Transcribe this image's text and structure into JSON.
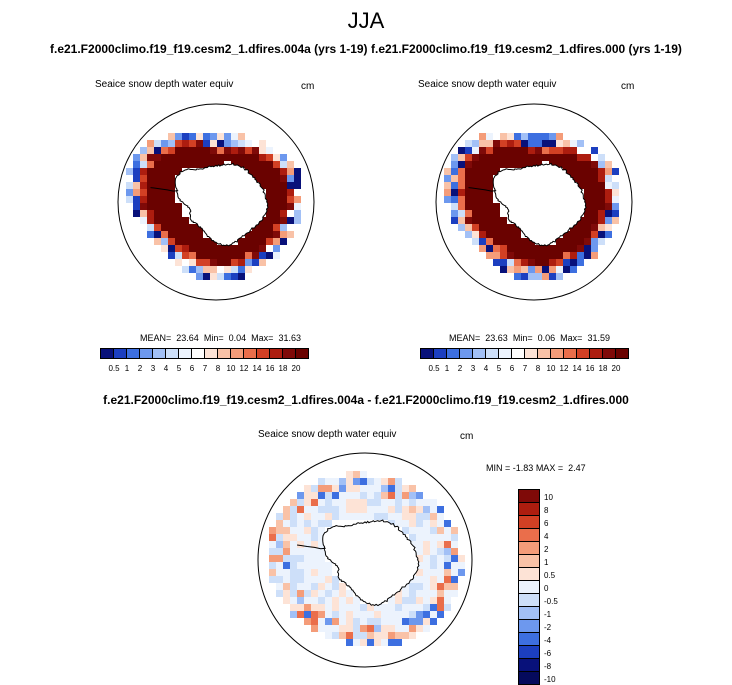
{
  "figure": {
    "title": "JJA",
    "variable_label": "Seaice snow depth water equiv",
    "units": "cm"
  },
  "chart_data": [
    {
      "type": "heatmap",
      "panel": "left",
      "title": "f.e21.F2000climo.f19_f19.cesm2_1.dfires.004a (yrs 1-19)",
      "subtitle": "Seaice snow depth water equiv",
      "units": "cm",
      "projection": "south polar stereographic",
      "stats": {
        "mean_label": "MEAN=",
        "mean": "23.64",
        "min_label": "Min=",
        "min": "0.04",
        "max_label": "Max=",
        "max": "31.63"
      },
      "colorbar_levels": [
        "0.5",
        "1",
        "2",
        "3",
        "4",
        "5",
        "6",
        "7",
        "8",
        "10",
        "12",
        "14",
        "16",
        "18",
        "20"
      ]
    },
    {
      "type": "heatmap",
      "panel": "right",
      "title": "f.e21.F2000climo.f19_f19.cesm2_1.dfires.000 (yrs 1-19)",
      "subtitle": "Seaice snow depth water equiv",
      "units": "cm",
      "projection": "south polar stereographic",
      "stats": {
        "mean_label": "MEAN=",
        "mean": "23.63",
        "min_label": "Min=",
        "min": "0.06",
        "max_label": "Max=",
        "max": "31.59"
      },
      "colorbar_levels": [
        "0.5",
        "1",
        "2",
        "3",
        "4",
        "5",
        "6",
        "7",
        "8",
        "10",
        "12",
        "14",
        "16",
        "18",
        "20"
      ]
    },
    {
      "type": "heatmap",
      "panel": "difference",
      "title": "f.e21.F2000climo.f19_f19.cesm2_1.dfires.004a - f.e21.F2000climo.f19_f19.cesm2_1.dfires.000",
      "subtitle": "Seaice snow depth water equiv",
      "units": "cm",
      "projection": "south polar stereographic",
      "stats": {
        "min_label": "MIN =",
        "min": "-1.83",
        "max_label": "MAX =",
        "max": "2.47"
      },
      "colorbar_levels": [
        "10",
        "8",
        "6",
        "4",
        "2",
        "1",
        "0.5",
        "0",
        "-0.5",
        "-1",
        "-2",
        "-4",
        "-6",
        "-8",
        "-10"
      ]
    }
  ],
  "palette": {
    "abs": [
      "#08117a",
      "#1c3fc0",
      "#3d6fe0",
      "#6d98ee",
      "#a2c0f6",
      "#cddff9",
      "#ecf3fd",
      "#ffffff",
      "#fde3d6",
      "#f9c2a7",
      "#f49c79",
      "#ea6e4b",
      "#d24024",
      "#ad1d0f",
      "#7f0a08",
      "#6a0200"
    ],
    "diff": [
      "#7f0a08",
      "#ad1d0f",
      "#d24024",
      "#ea6e4b",
      "#f49c79",
      "#f9c2a7",
      "#fde3d6",
      "#ecf3fd",
      "#cddff9",
      "#a2c0f6",
      "#6d98ee",
      "#3d6fe0",
      "#1c3fc0",
      "#08117a",
      "#050a5c"
    ]
  }
}
